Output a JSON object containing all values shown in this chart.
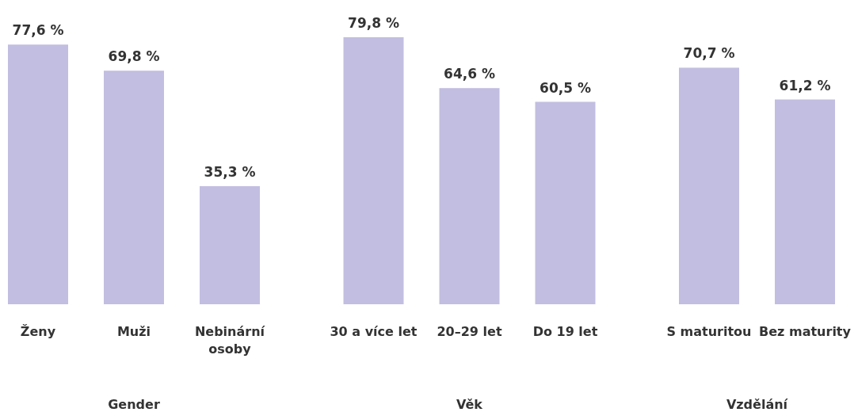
{
  "chart_data": [
    {
      "type": "bar",
      "xlabel": "Gender",
      "categories": [
        "Ženy",
        "Muži",
        "Nebinární osoby"
      ],
      "values": [
        77.6,
        69.8,
        35.3
      ],
      "value_labels": [
        "77,6 %",
        "69,8 %",
        "35,3 %"
      ],
      "color": "#c2bee1"
    },
    {
      "type": "bar",
      "xlabel": "Věk",
      "categories": [
        "30 a více let",
        "20–29 let",
        "Do 19 let"
      ],
      "values": [
        79.8,
        64.6,
        60.5
      ],
      "value_labels": [
        "79,8 %",
        "64,6 %",
        "60,5 %"
      ],
      "color": "#c2bee1"
    },
    {
      "type": "bar",
      "xlabel": "Vzdělání",
      "categories": [
        "S maturitou",
        "Bez maturity"
      ],
      "values": [
        70.7,
        61.2
      ],
      "value_labels": [
        "70,7 %",
        "61,2 %"
      ],
      "color": "#c2bee1"
    }
  ]
}
